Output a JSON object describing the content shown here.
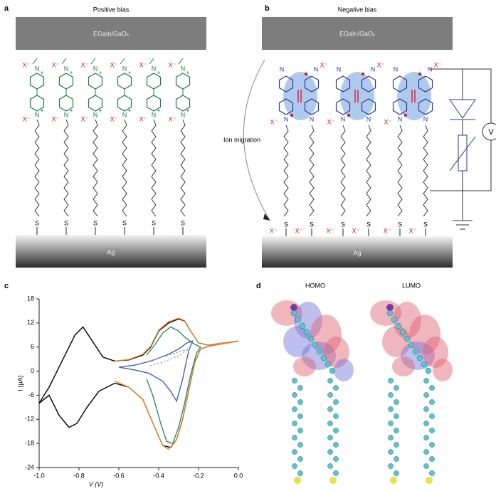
{
  "panel_a": {
    "label": "a",
    "title": "Positive bias",
    "top_electrode": "EGaIn/GaOₓ",
    "bottom_electrode": "Ag",
    "anion": "X⁻",
    "nitrogen": "N",
    "charge": "+",
    "sulfur": "S"
  },
  "panel_b": {
    "label": "b",
    "title": "Negative bias",
    "top_electrode": "EGaIn/GaOₓ",
    "bottom_electrode": "Ag",
    "anion": "X⁻",
    "nitrogen": "N",
    "sulfur": "S",
    "migration": "Ion migration",
    "voltmeter": "V"
  },
  "panel_d": {
    "label": "d",
    "homo": "HOMO",
    "lumo": "LUMO"
  },
  "chart_data": {
    "type": "line",
    "panel_label": "c",
    "xlabel": "V (V)",
    "ylabel": "I (μA)",
    "xlim": [
      -1,
      0
    ],
    "ylim": [
      -24,
      18
    ],
    "xticks": [
      {
        "value": -1,
        "label": "-1.0"
      },
      -0.8,
      -0.6,
      -0.4,
      -0.2,
      {
        "value": 0,
        "label": "0.0"
      }
    ],
    "yticks": [
      -24,
      -18,
      -12,
      -6,
      0,
      6,
      12,
      18
    ],
    "series": [
      {
        "color": "#000000",
        "line_style": "solid",
        "x": [
          -1,
          -0.95,
          -0.88,
          -0.82,
          -0.78,
          -0.74,
          -0.68,
          -0.62,
          -0.55,
          -0.48,
          -0.44,
          -0.4,
          -0.35,
          -0.3,
          -0.27,
          -0.24,
          -0.2,
          -0.15,
          -0.08,
          0,
          -0.08,
          -0.15,
          -0.19,
          -0.22,
          -0.25,
          -0.28,
          -0.31,
          -0.34,
          -0.38,
          -0.42,
          -0.48,
          -0.55,
          -0.62,
          -0.7,
          -0.76,
          -0.81,
          -0.85,
          -0.9,
          -0.95,
          -1
        ],
        "values": [
          -8,
          -4,
          3,
          9,
          11,
          8,
          3.5,
          2.5,
          2.8,
          4,
          6,
          10,
          12,
          13,
          12.5,
          10,
          7,
          6.5,
          7,
          7.5,
          6.8,
          6.2,
          5.5,
          2,
          -5,
          -12,
          -17,
          -19,
          -18.5,
          -14,
          -7,
          -4,
          -3,
          -5,
          -9,
          -13,
          -14,
          -11,
          -6,
          -8
        ]
      },
      {
        "color": "#e08a2c",
        "line_style": "solid",
        "x": [
          -0.62,
          -0.55,
          -0.48,
          -0.44,
          -0.4,
          -0.35,
          -0.3,
          -0.27,
          -0.24,
          -0.2,
          -0.15,
          -0.08,
          0,
          -0.08,
          -0.15,
          -0.19,
          -0.22,
          -0.25,
          -0.28,
          -0.31,
          -0.35,
          -0.38,
          -0.42,
          -0.48,
          -0.55,
          -0.62
        ],
        "values": [
          2.5,
          2.9,
          4.2,
          6.2,
          10.2,
          12.3,
          13.2,
          12.6,
          10,
          7,
          6.5,
          7,
          7.5,
          6.8,
          6.2,
          5.5,
          2,
          -5,
          -12,
          -17,
          -19.5,
          -18.5,
          -14,
          -7,
          -4,
          -2.5
        ]
      },
      {
        "color": "#2e8b6e",
        "line_style": "solid",
        "x": [
          -0.46,
          -0.42,
          -0.38,
          -0.34,
          -0.3,
          -0.27,
          -0.23,
          -0.19,
          -0.21,
          -0.24,
          -0.27,
          -0.3,
          -0.33,
          -0.36,
          -0.39,
          -0.43,
          -0.46
        ],
        "values": [
          4,
          6.5,
          9.5,
          11,
          10,
          8.5,
          7,
          6,
          4.5,
          -1,
          -8,
          -14,
          -18,
          -17.5,
          -13,
          -6,
          -2
        ]
      },
      {
        "color": "#4a5fb0",
        "line_style": "solid",
        "x": [
          -0.6,
          -0.52,
          -0.44,
          -0.36,
          -0.3,
          -0.26,
          -0.23,
          -0.25,
          -0.28,
          -0.31,
          -0.34,
          -0.38,
          -0.45,
          -0.52,
          -0.6
        ],
        "values": [
          1,
          1.5,
          2.5,
          4,
          5.5,
          7,
          7.5,
          5,
          -2,
          -7.5,
          -5,
          -2.5,
          -0.5,
          0.3,
          1
        ]
      },
      {
        "color": "#999999",
        "line_style": "dashed",
        "x": [
          -0.45,
          -0.38,
          -0.3,
          -0.25,
          -0.3,
          -0.38,
          -0.45
        ],
        "values": [
          2.5,
          3.5,
          4.8,
          5.5,
          3.8,
          2.2,
          1.2
        ]
      }
    ]
  }
}
